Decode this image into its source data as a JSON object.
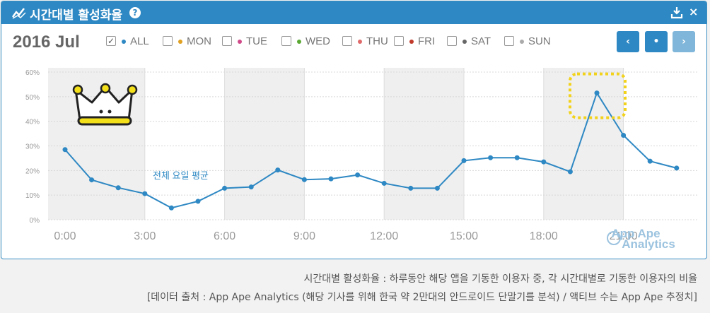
{
  "header": {
    "title": "시간대별 활성화율",
    "help_symbol": "?",
    "close_symbol": "×",
    "download_icon": "download-icon"
  },
  "date_label": "2016 Jul",
  "filters": [
    {
      "label": "ALL",
      "color": "#2e88c3",
      "checked": true
    },
    {
      "label": "MON",
      "color": "#e0a020",
      "checked": false
    },
    {
      "label": "TUE",
      "color": "#d04a8a",
      "checked": false
    },
    {
      "label": "WED",
      "color": "#5aa832",
      "checked": false
    },
    {
      "label": "THU",
      "color": "#e06a6a",
      "checked": false
    },
    {
      "label": "FRI",
      "color": "#c0392b",
      "checked": false
    },
    {
      "label": "SAT",
      "color": "#666666",
      "checked": false
    },
    {
      "label": "SUN",
      "color": "#aaaaaa",
      "checked": false
    }
  ],
  "nav": {
    "prev": "‹",
    "current": "•",
    "next": "›"
  },
  "chart_data": {
    "type": "line",
    "x": [
      0,
      1,
      2,
      3,
      4,
      5,
      6,
      7,
      8,
      9,
      10,
      11,
      12,
      13,
      14,
      15,
      16,
      17,
      18,
      19,
      20,
      21,
      22,
      23
    ],
    "xtick_labels": [
      "0:00",
      "3:00",
      "6:00",
      "9:00",
      "12:00",
      "15:00",
      "18:00",
      "21:00"
    ],
    "xtick_values": [
      0,
      3,
      6,
      9,
      12,
      15,
      18,
      21
    ],
    "ytick_labels": [
      "0%",
      "10%",
      "20%",
      "30%",
      "40%",
      "50%",
      "60%"
    ],
    "ylim": [
      0,
      60
    ],
    "series": [
      {
        "values": [
          28.5,
          16.2,
          13.0,
          10.6,
          4.8,
          7.5,
          12.8,
          13.3,
          20.2,
          16.3,
          16.6,
          18.2,
          14.8,
          12.8,
          12.8,
          24.0,
          25.2,
          25.2,
          23.5,
          19.5,
          51.5,
          34.3,
          23.8,
          21.0
        ],
        "color": "#2e88c3"
      }
    ],
    "annotation": "전체 요일 평균",
    "peak_hour": 20,
    "min_hour": 4
  },
  "watermark": {
    "line1": "App Ape",
    "line2": "Analytics"
  },
  "captions": [
    "시간대별 활성화율 : 하루동안 해당 앱을 기동한 이용자 중, 각 시간대별로 기동한 이용자의 비율",
    "[데이터 출처 : App Ape Analytics (해당 기사를 위해 한국 약 2만대의 안드로이드 단말기를 분석) / 액티브 수는 App Ape 추정치]"
  ]
}
